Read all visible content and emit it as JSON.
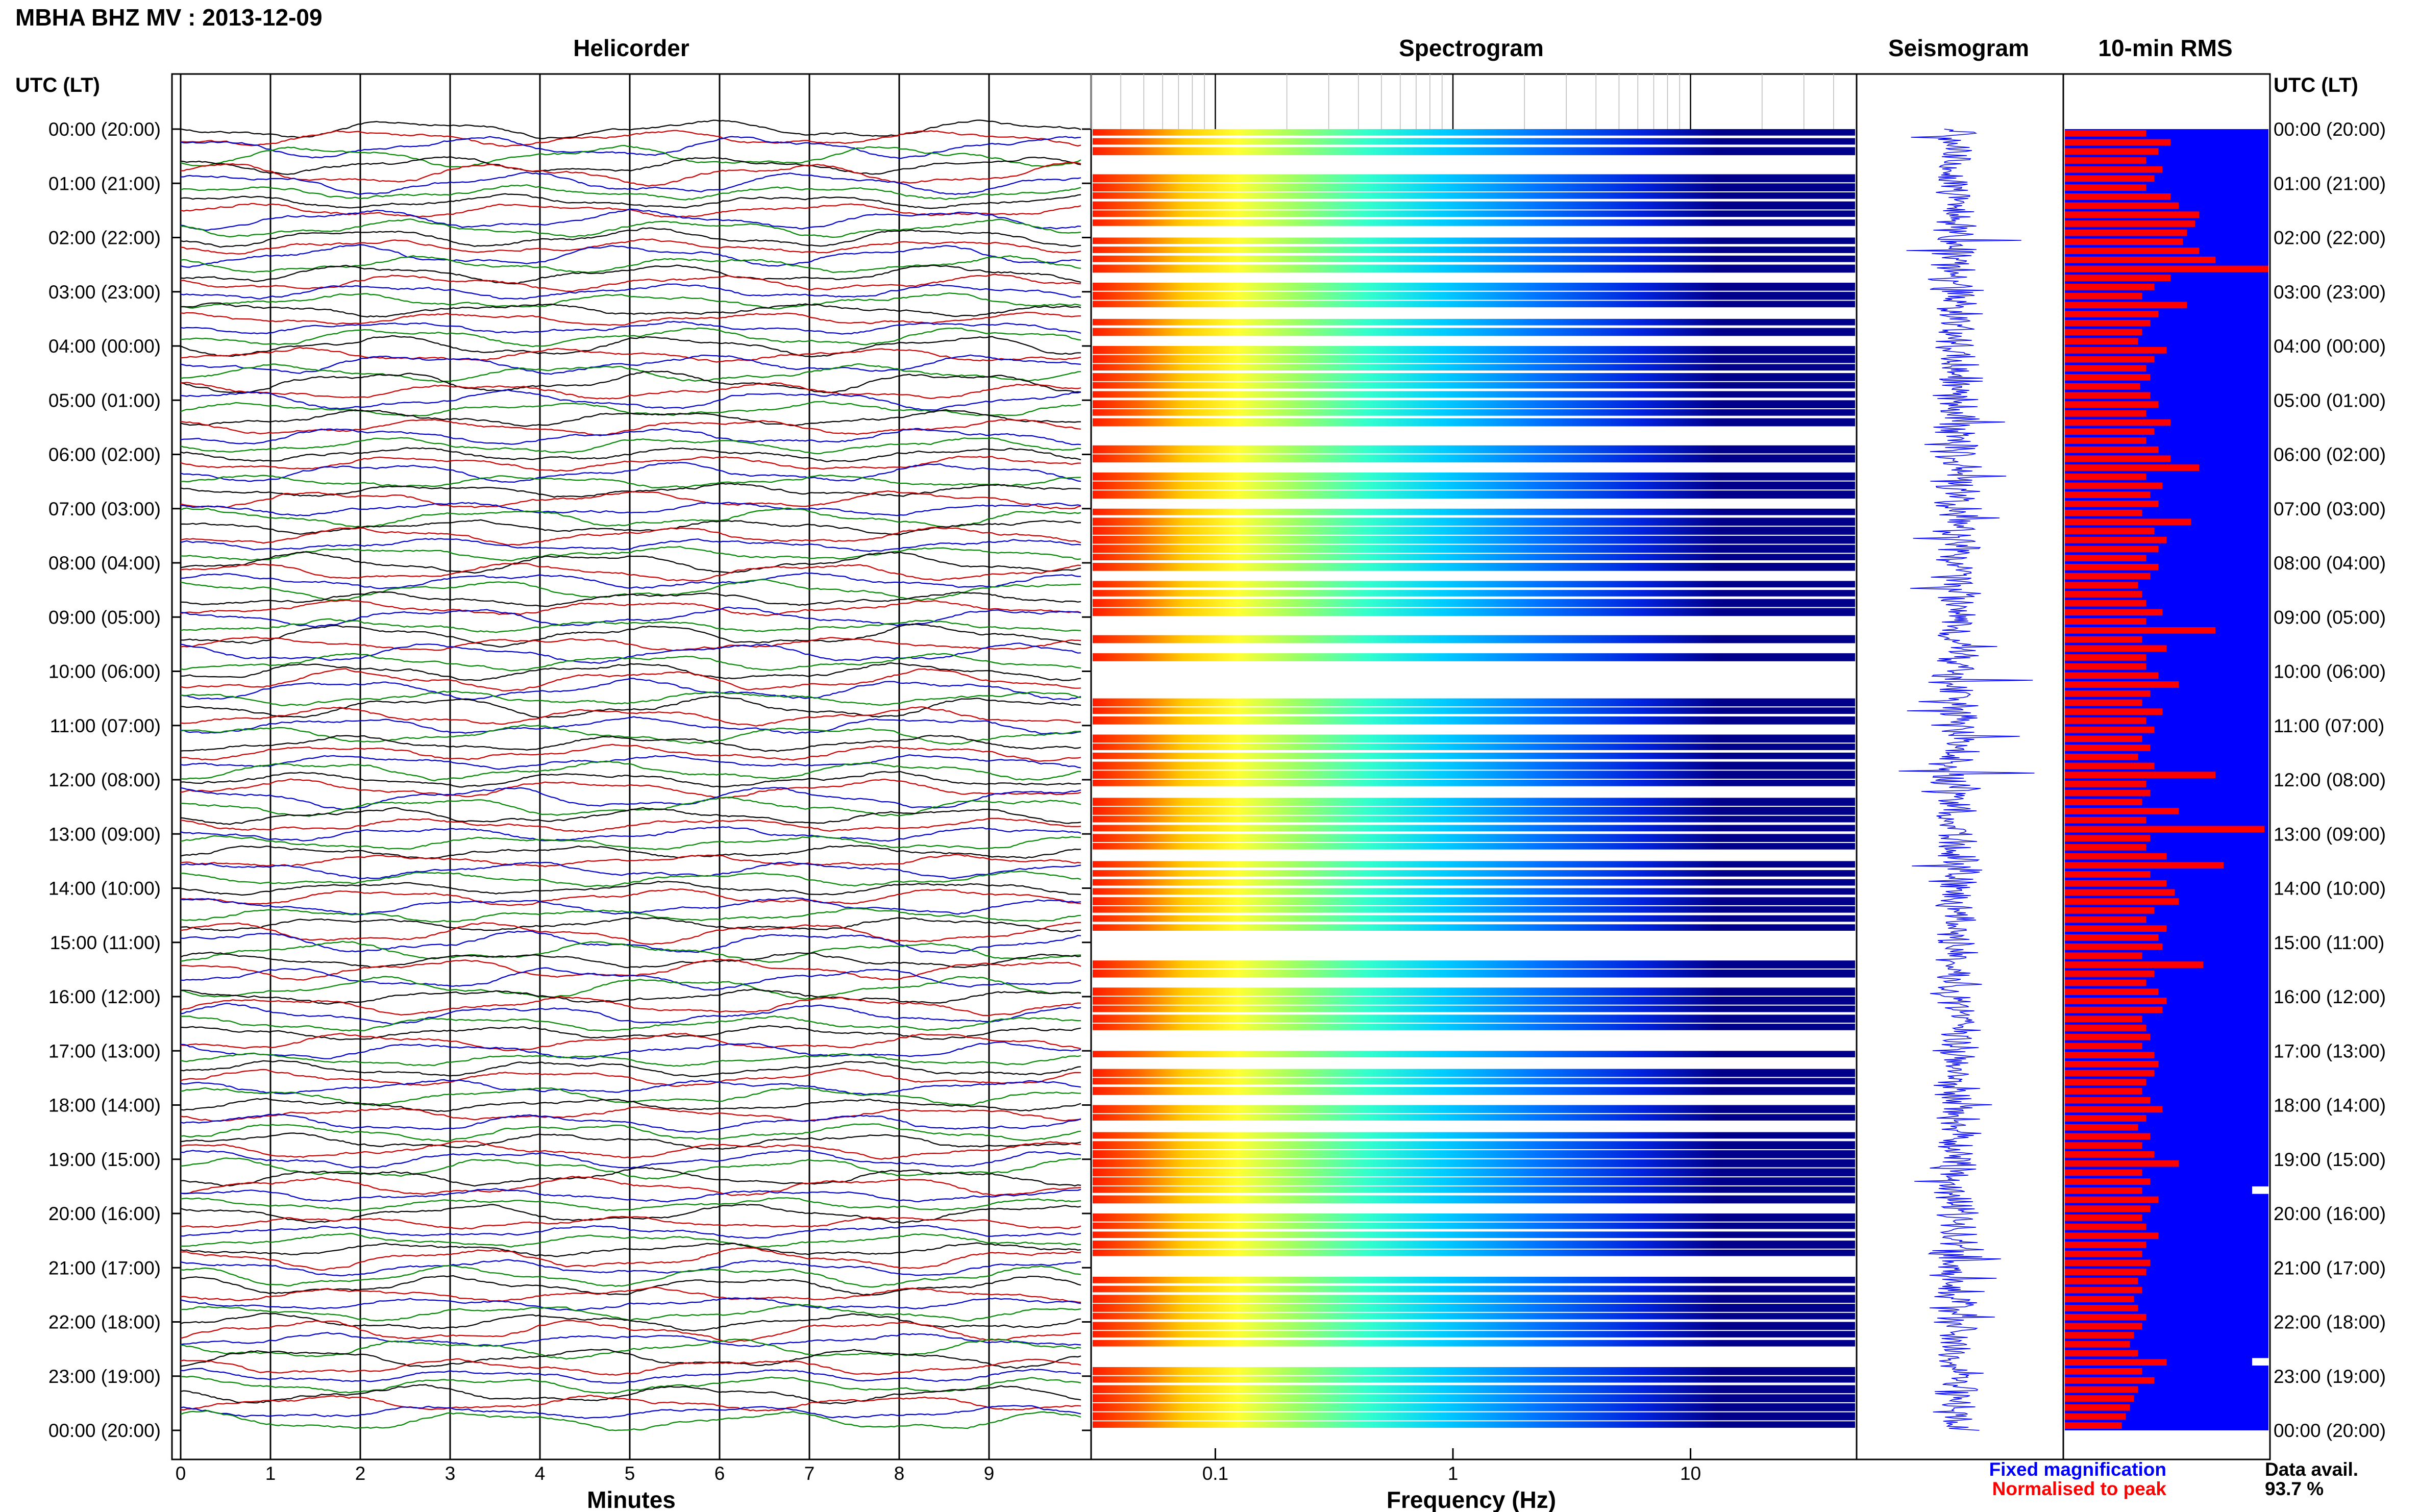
{
  "figure_title": "MBHA BHZ MV : 2013-12-09",
  "panel_titles": {
    "helicorder": "Helicorder",
    "spectrogram": "Spectrogram",
    "seismogram": "Seismogram",
    "rms": "10-min RMS"
  },
  "time_axis_label": "UTC (LT)",
  "legend": {
    "fixed": "Fixed magnification",
    "normalised": "Normalised to peak",
    "fixed_color": "#0000ff",
    "normalised_color": "#ff0000",
    "avail_label": "Data avail.",
    "avail_value": "93.7 %"
  },
  "colors": {
    "trace_cycle": [
      "#000000",
      "#cc0000",
      "#0000cc",
      "#008800"
    ],
    "spectrogram_low": "#00008b",
    "rms_bar": "#ff0000",
    "rms_background": "#0000ff",
    "seismogram": "#0000ff"
  },
  "chart_data": [
    {
      "type": "line",
      "name": "helicorder",
      "title": "Helicorder",
      "xlabel": "Minutes",
      "x_ticks": [
        0,
        1,
        2,
        3,
        4,
        5,
        6,
        7,
        8,
        9
      ],
      "xlim": [
        0,
        10
      ],
      "rows_per_hour": 6,
      "rows": 144
    },
    {
      "type": "heatmap",
      "name": "spectrogram",
      "title": "Spectrogram",
      "xlabel": "Frequency (Hz)",
      "x_scale": "log",
      "x_ticks": [
        0.1,
        1,
        10
      ],
      "xlim": [
        0.03,
        50
      ],
      "data_gaps_utc": [
        [
          "10:00",
          "10:30"
        ],
        [
          "14:50",
          "15:10"
        ],
        [
          "22:30",
          "22:50"
        ]
      ]
    },
    {
      "type": "line",
      "name": "seismogram",
      "title": "Seismogram"
    },
    {
      "type": "bar",
      "name": "rms",
      "title": "10-min RMS",
      "orientation": "horizontal",
      "bin_minutes": 10,
      "relative_values": [
        0.4,
        0.52,
        0.46,
        0.4,
        0.48,
        0.44,
        0.4,
        0.52,
        0.56,
        0.66,
        0.64,
        0.6,
        0.58,
        0.66,
        0.74,
        1.0,
        0.52,
        0.44,
        0.38,
        0.6,
        0.46,
        0.42,
        0.38,
        0.36,
        0.5,
        0.44,
        0.4,
        0.42,
        0.37,
        0.42,
        0.46,
        0.4,
        0.52,
        0.44,
        0.4,
        0.46,
        0.52,
        0.66,
        0.4,
        0.48,
        0.42,
        0.46,
        0.38,
        0.62,
        0.44,
        0.5,
        0.46,
        0.4,
        0.46,
        0.42,
        0.36,
        0.38,
        0.4,
        0.48,
        0.4,
        0.74,
        0.38,
        0.5,
        0.4,
        0.4,
        0.46,
        0.56,
        0.42,
        0.38,
        0.48,
        0.4,
        0.44,
        0.38,
        0.42,
        0.36,
        0.44,
        0.74,
        0.4,
        0.42,
        0.38,
        0.56,
        0.4,
        0.98,
        0.42,
        0.4,
        0.5,
        0.78,
        0.42,
        0.5,
        0.54,
        0.56,
        0.44,
        0.4,
        0.5,
        0.46,
        0.48,
        0.38,
        0.68,
        0.44,
        0.4,
        0.46,
        0.5,
        0.48,
        0.38,
        0.4,
        0.42,
        0.38,
        0.44,
        0.46,
        0.44,
        0.4,
        0.38,
        0.42,
        0.48,
        0.4,
        0.36,
        0.42,
        0.38,
        0.44,
        0.56,
        0.38,
        0.42,
        0.38,
        0.46,
        0.42,
        0.38,
        0.4,
        0.46,
        0.4,
        0.38,
        0.42,
        0.4,
        0.36,
        0.38,
        0.34,
        0.36,
        0.4,
        0.38,
        0.34,
        0.32,
        0.36,
        0.5,
        0.38,
        0.44,
        0.36,
        0.34,
        0.32,
        0.3,
        0.28
      ],
      "data_gaps_utc": [
        [
          "19:30",
          "19:40"
        ],
        [
          "22:40",
          "22:50"
        ]
      ]
    }
  ],
  "time_ticks": [
    {
      "utc": "00:00 (20:00)"
    },
    {
      "utc": "01:00 (21:00)"
    },
    {
      "utc": "02:00 (22:00)"
    },
    {
      "utc": "03:00 (23:00)"
    },
    {
      "utc": "04:00 (00:00)"
    },
    {
      "utc": "05:00 (01:00)"
    },
    {
      "utc": "06:00 (02:00)"
    },
    {
      "utc": "07:00 (03:00)"
    },
    {
      "utc": "08:00 (04:00)"
    },
    {
      "utc": "09:00 (05:00)"
    },
    {
      "utc": "10:00 (06:00)"
    },
    {
      "utc": "11:00 (07:00)"
    },
    {
      "utc": "12:00 (08:00)"
    },
    {
      "utc": "13:00 (09:00)"
    },
    {
      "utc": "14:00 (10:00)"
    },
    {
      "utc": "15:00 (11:00)"
    },
    {
      "utc": "16:00 (12:00)"
    },
    {
      "utc": "17:00 (13:00)"
    },
    {
      "utc": "18:00 (14:00)"
    },
    {
      "utc": "19:00 (15:00)"
    },
    {
      "utc": "20:00 (16:00)"
    },
    {
      "utc": "21:00 (17:00)"
    },
    {
      "utc": "22:00 (18:00)"
    },
    {
      "utc": "23:00 (19:00)"
    },
    {
      "utc": "00:00 (20:00)"
    }
  ]
}
